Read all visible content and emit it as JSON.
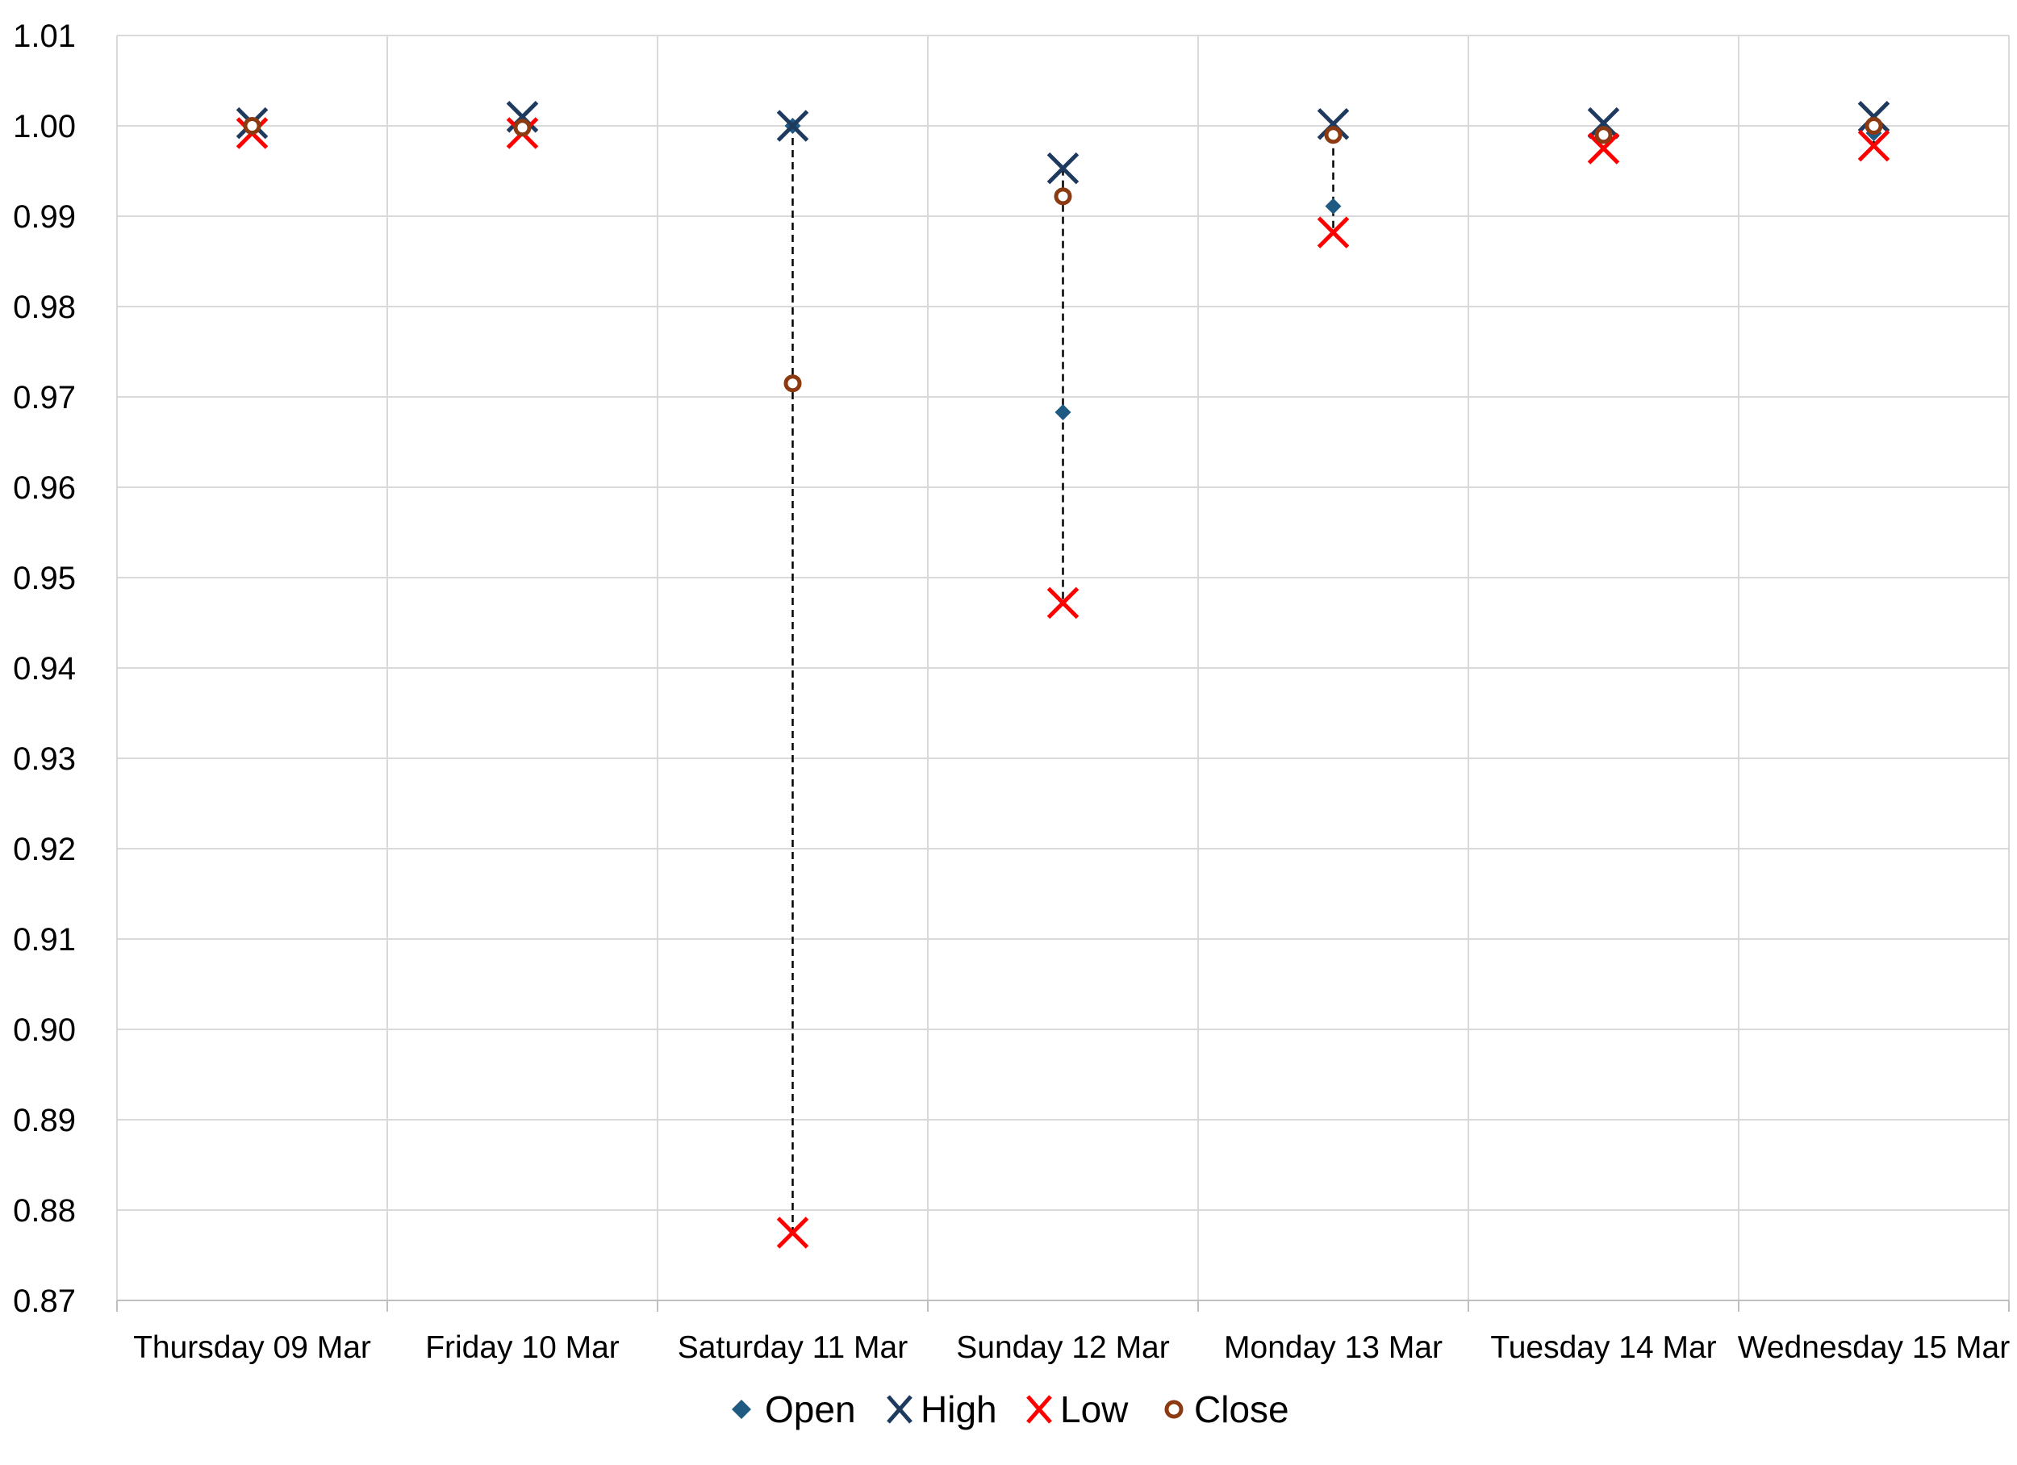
{
  "chart_data": {
    "type": "scatter",
    "title": "",
    "xlabel": "",
    "ylabel": "",
    "categories": [
      "Thursday 09 Mar",
      "Friday 10 Mar",
      "Saturday 11 Mar",
      "Sunday 12 Mar",
      "Monday 13 Mar",
      "Tuesday 14 Mar",
      "Wednesday 15 Mar"
    ],
    "ylim": [
      0.87,
      1.01
    ],
    "y_ticks": [
      "0.87",
      "0.88",
      "0.89",
      "0.90",
      "0.91",
      "0.92",
      "0.93",
      "0.94",
      "0.95",
      "0.96",
      "0.97",
      "0.98",
      "0.99",
      "1.00",
      "1.01"
    ],
    "grid": true,
    "legend_position": "bottom",
    "series": [
      {
        "name": "Open",
        "marker": "diamond",
        "color": "#1F5A82",
        "values": [
          1.0,
          1.0,
          1.0,
          0.9683,
          0.9911,
          0.999,
          0.9992
        ]
      },
      {
        "name": "High",
        "marker": "x",
        "color": "#1F3A5F",
        "values": [
          1.0003,
          1.001,
          1.0,
          0.9953,
          1.0002,
          1.0003,
          1.001
        ]
      },
      {
        "name": "Low",
        "marker": "x",
        "color": "#FF0000",
        "values": [
          0.9992,
          0.9992,
          0.8775,
          0.9472,
          0.9882,
          0.9975,
          0.9978
        ]
      },
      {
        "name": "Close",
        "marker": "circle",
        "color": "#8B3A12",
        "values": [
          1.0,
          0.9998,
          0.9715,
          0.9922,
          0.999,
          0.999,
          1.0
        ]
      }
    ],
    "high_low_lines": {
      "style": "dashed",
      "color": "#000000"
    }
  }
}
